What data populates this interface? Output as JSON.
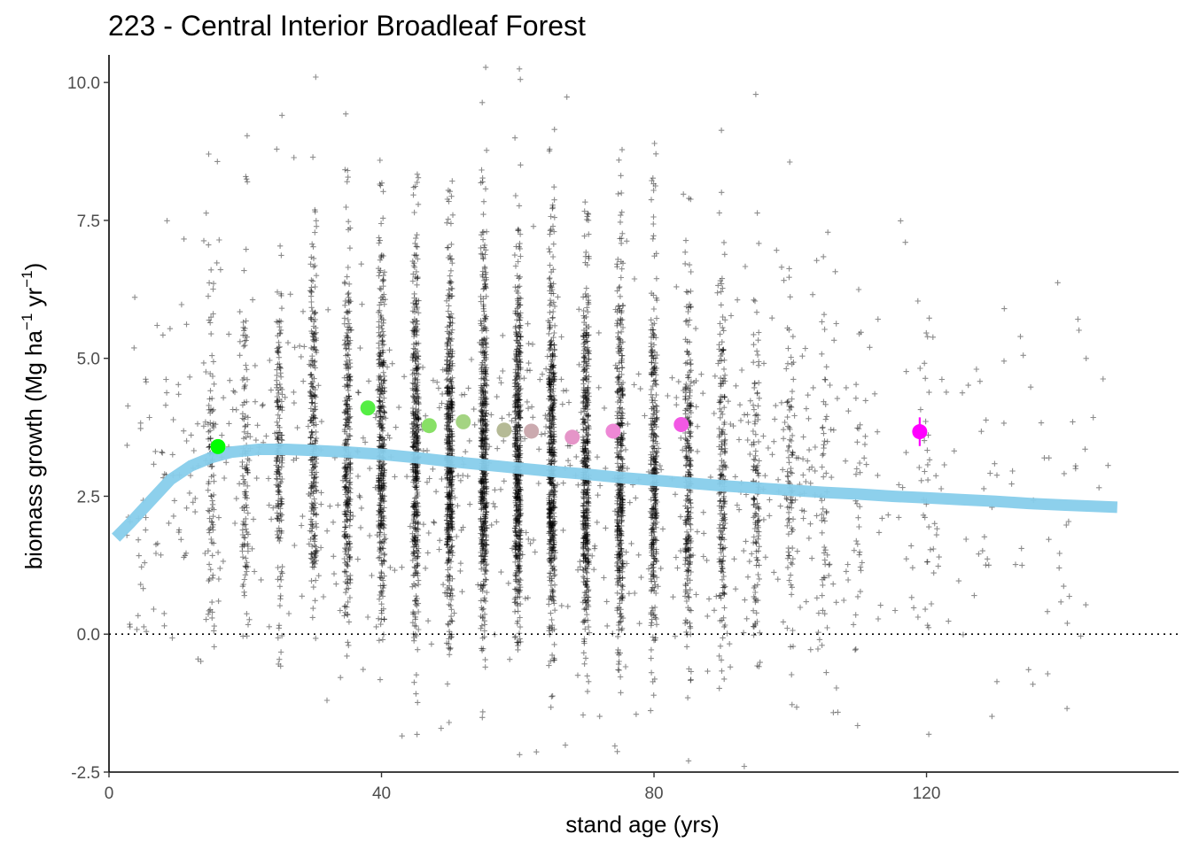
{
  "chart_data": {
    "type": "scatter",
    "title": "223 - Central Interior Broadleaf Forest",
    "xlabel": "stand age (yrs)",
    "ylabel": {
      "base": "biomass growth (Mg ha",
      "sup1": "−1",
      "mid": " yr",
      "sup2": "−1",
      "end": ")"
    },
    "xlim": [
      0,
      157
    ],
    "ylim": [
      -2.5,
      10.5
    ],
    "x_ticks": [
      0,
      40,
      80,
      120
    ],
    "x_tick_labels": [
      "0",
      "40",
      "80",
      "120"
    ],
    "y_ticks": [
      -2.5,
      0,
      2.5,
      5,
      7.5,
      10
    ],
    "y_tick_labels": [
      "-2.5",
      "0.0",
      "2.5",
      "5.0",
      "7.5",
      "10.0"
    ],
    "grid": false,
    "reference_line": {
      "y": 0,
      "style": "dotted",
      "color": "#000000"
    },
    "point_cloud": {
      "marker": "cross",
      "color": "#000000",
      "columns": [
        {
          "x": 15,
          "mean": 3.0,
          "count": 90
        },
        {
          "x": 20,
          "mean": 3.0,
          "count": 110
        },
        {
          "x": 25,
          "mean": 3.2,
          "count": 170
        },
        {
          "x": 30,
          "mean": 3.3,
          "count": 230
        },
        {
          "x": 35,
          "mean": 3.2,
          "count": 300
        },
        {
          "x": 40,
          "mean": 3.2,
          "count": 360
        },
        {
          "x": 45,
          "mean": 3.2,
          "count": 420
        },
        {
          "x": 50,
          "mean": 3.1,
          "count": 470
        },
        {
          "x": 55,
          "mean": 3.1,
          "count": 500
        },
        {
          "x": 60,
          "mean": 3.0,
          "count": 520
        },
        {
          "x": 65,
          "mean": 3.0,
          "count": 480
        },
        {
          "x": 70,
          "mean": 2.9,
          "count": 440
        },
        {
          "x": 75,
          "mean": 2.8,
          "count": 380
        },
        {
          "x": 80,
          "mean": 2.8,
          "count": 320
        },
        {
          "x": 85,
          "mean": 2.7,
          "count": 250
        },
        {
          "x": 90,
          "mean": 2.6,
          "count": 190
        },
        {
          "x": 95,
          "mean": 2.6,
          "count": 120
        },
        {
          "x": 100,
          "mean": 2.5,
          "count": 80
        },
        {
          "x": 105,
          "mean": 2.5,
          "count": 45
        },
        {
          "x": 110,
          "mean": 2.4,
          "count": 25
        },
        {
          "x": 120,
          "mean": 2.4,
          "count": 20
        }
      ],
      "scattered_count": 900
    },
    "trend_line": {
      "color": "#87CEEB",
      "x": [
        1,
        3,
        6,
        9,
        12,
        15,
        18,
        22,
        26,
        30,
        35,
        40,
        45,
        50,
        55,
        60,
        65,
        70,
        75,
        80,
        85,
        90,
        95,
        100,
        105,
        110,
        115,
        120,
        125,
        130,
        135,
        140,
        148
      ],
      "y": [
        1.75,
        2.0,
        2.4,
        2.8,
        3.05,
        3.2,
        3.3,
        3.35,
        3.35,
        3.33,
        3.3,
        3.26,
        3.2,
        3.13,
        3.07,
        3.01,
        2.95,
        2.9,
        2.84,
        2.79,
        2.74,
        2.69,
        2.65,
        2.61,
        2.57,
        2.54,
        2.5,
        2.47,
        2.44,
        2.41,
        2.37,
        2.34,
        2.3
      ]
    },
    "group_means": [
      {
        "x": 16,
        "y": 3.4,
        "err": 0.08,
        "color": "#00FF00"
      },
      {
        "x": 38,
        "y": 4.1,
        "err": 0.08,
        "color": "#55EE44"
      },
      {
        "x": 47,
        "y": 3.78,
        "err": 0.07,
        "color": "#88E066"
      },
      {
        "x": 52,
        "y": 3.85,
        "err": 0.07,
        "color": "#A4D482"
      },
      {
        "x": 58,
        "y": 3.7,
        "err": 0.07,
        "color": "#B5BA96"
      },
      {
        "x": 62,
        "y": 3.68,
        "err": 0.07,
        "color": "#CBAAAF"
      },
      {
        "x": 68,
        "y": 3.57,
        "err": 0.07,
        "color": "#E595C8"
      },
      {
        "x": 74,
        "y": 3.68,
        "err": 0.07,
        "color": "#EE88D6"
      },
      {
        "x": 84,
        "y": 3.8,
        "err": 0.1,
        "color": "#F258E4"
      },
      {
        "x": 119,
        "y": 3.67,
        "err": 0.26,
        "color": "#FF00FF"
      }
    ]
  }
}
